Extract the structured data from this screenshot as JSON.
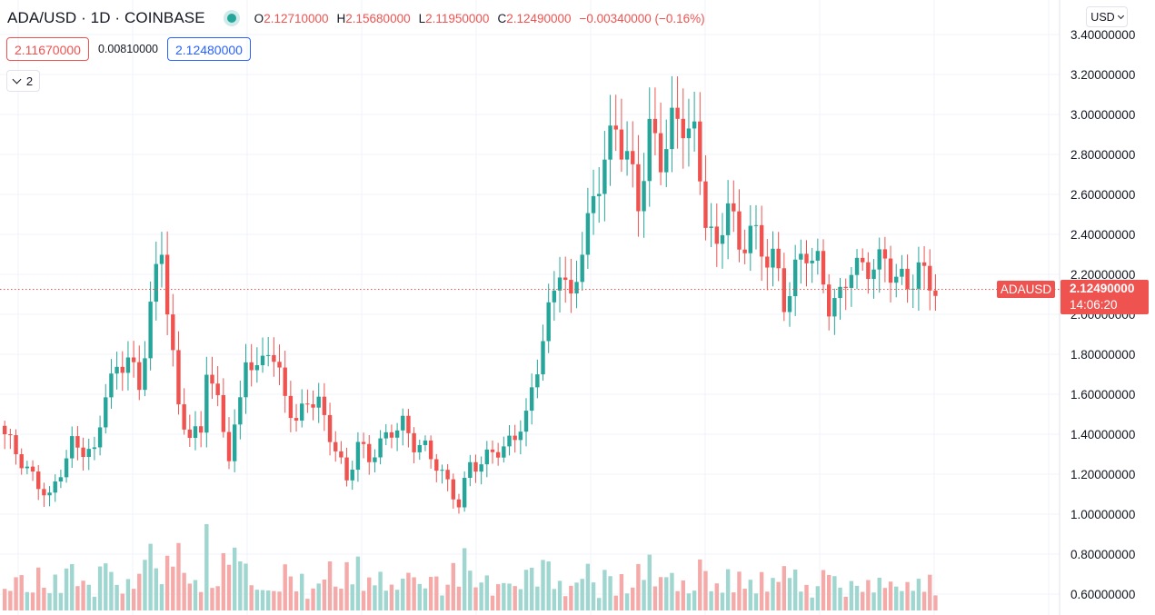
{
  "header": {
    "symbol": "ADA/USD · 1D · COINBASE",
    "open_label": "O",
    "open": "2.12710000",
    "high_label": "H",
    "high": "2.15680000",
    "low_label": "L",
    "low": "2.11950000",
    "close_label": "C",
    "close": "2.12490000",
    "change": "−0.00340000 (−0.16%)",
    "status_icon": "live-dot-icon"
  },
  "quote": {
    "bid": "2.11670000",
    "spread": "0.00810000",
    "ask": "2.12480000"
  },
  "indicators": {
    "count": "2",
    "icon": "chevron-down-icon"
  },
  "currency": {
    "label": "USD",
    "icon": "chevron-down-icon"
  },
  "last_price": {
    "symbol": "ADAUSD",
    "price": "2.12490000",
    "countdown": "14:06:20"
  },
  "colors": {
    "up": "#26a69a",
    "down": "#ef5350",
    "up_volume": "#9fd6d0",
    "down_volume": "#f4aaa8",
    "grid": "#f0f3fa"
  },
  "chart_data": {
    "type": "candlestick",
    "price_scale": {
      "ticks": [
        "3.40000000",
        "3.20000000",
        "3.00000000",
        "2.80000000",
        "2.60000000",
        "2.40000000",
        "2.20000000",
        "2.00000000",
        "1.80000000",
        "1.60000000",
        "1.40000000",
        "1.20000000",
        "1.00000000",
        "0.80000000",
        "0.60000000"
      ],
      "range": [
        0.55,
        3.45
      ]
    },
    "last_price": 2.1249,
    "key_closes": [
      {
        "i": 0,
        "c": 1.4
      },
      {
        "i": 4,
        "c": 1.22
      },
      {
        "i": 8,
        "c": 1.08
      },
      {
        "i": 10,
        "c": 1.22
      },
      {
        "i": 12,
        "c": 1.35
      },
      {
        "i": 16,
        "c": 1.3
      },
      {
        "i": 18,
        "c": 1.62
      },
      {
        "i": 22,
        "c": 1.8
      },
      {
        "i": 24,
        "c": 1.62
      },
      {
        "i": 26,
        "c": 2.05
      },
      {
        "i": 28,
        "c": 2.33
      },
      {
        "i": 29,
        "c": 2.05
      },
      {
        "i": 31,
        "c": 1.52
      },
      {
        "i": 33,
        "c": 1.4
      },
      {
        "i": 35,
        "c": 1.4
      },
      {
        "i": 36,
        "c": 1.75
      },
      {
        "i": 38,
        "c": 1.55
      },
      {
        "i": 40,
        "c": 1.3
      },
      {
        "i": 42,
        "c": 1.55
      },
      {
        "i": 43,
        "c": 1.8
      },
      {
        "i": 45,
        "c": 1.7
      },
      {
        "i": 47,
        "c": 1.85
      },
      {
        "i": 50,
        "c": 1.6
      },
      {
        "i": 52,
        "c": 1.45
      },
      {
        "i": 54,
        "c": 1.58
      },
      {
        "i": 56,
        "c": 1.55
      },
      {
        "i": 58,
        "c": 1.4
      },
      {
        "i": 61,
        "c": 1.17
      },
      {
        "i": 63,
        "c": 1.35
      },
      {
        "i": 65,
        "c": 1.28
      },
      {
        "i": 67,
        "c": 1.35
      },
      {
        "i": 69,
        "c": 1.42
      },
      {
        "i": 71,
        "c": 1.45
      },
      {
        "i": 73,
        "c": 1.35
      },
      {
        "i": 75,
        "c": 1.33
      },
      {
        "i": 77,
        "c": 1.25
      },
      {
        "i": 79,
        "c": 1.15
      },
      {
        "i": 81,
        "c": 1.05
      },
      {
        "i": 83,
        "c": 1.25
      },
      {
        "i": 85,
        "c": 1.25
      },
      {
        "i": 87,
        "c": 1.32
      },
      {
        "i": 89,
        "c": 1.32
      },
      {
        "i": 91,
        "c": 1.4
      },
      {
        "i": 93,
        "c": 1.48
      },
      {
        "i": 95,
        "c": 1.75
      },
      {
        "i": 97,
        "c": 2.0
      },
      {
        "i": 99,
        "c": 2.25
      },
      {
        "i": 101,
        "c": 2.05
      },
      {
        "i": 103,
        "c": 2.35
      },
      {
        "i": 105,
        "c": 2.55
      },
      {
        "i": 107,
        "c": 2.8
      },
      {
        "i": 109,
        "c": 2.92
      },
      {
        "i": 111,
        "c": 2.8
      },
      {
        "i": 113,
        "c": 2.55
      },
      {
        "i": 115,
        "c": 2.92
      },
      {
        "i": 117,
        "c": 2.78
      },
      {
        "i": 119,
        "c": 2.95
      },
      {
        "i": 121,
        "c": 2.97
      },
      {
        "i": 123,
        "c": 2.88
      },
      {
        "i": 125,
        "c": 2.5
      },
      {
        "i": 127,
        "c": 2.3
      },
      {
        "i": 129,
        "c": 2.6
      },
      {
        "i": 131,
        "c": 2.3
      },
      {
        "i": 133,
        "c": 2.45
      },
      {
        "i": 135,
        "c": 2.3
      },
      {
        "i": 137,
        "c": 2.3
      },
      {
        "i": 139,
        "c": 2.05
      },
      {
        "i": 141,
        "c": 2.22
      },
      {
        "i": 143,
        "c": 2.32
      },
      {
        "i": 145,
        "c": 2.25
      },
      {
        "i": 147,
        "c": 2.05
      },
      {
        "i": 149,
        "c": 2.08
      },
      {
        "i": 151,
        "c": 2.25
      },
      {
        "i": 153,
        "c": 2.22
      },
      {
        "i": 155,
        "c": 2.25
      },
      {
        "i": 157,
        "c": 2.27
      },
      {
        "i": 159,
        "c": 2.18
      },
      {
        "i": 161,
        "c": 2.15
      },
      {
        "i": 163,
        "c": 2.22
      },
      {
        "i": 165,
        "c": 2.17
      },
      {
        "i": 166,
        "c": 2.125
      }
    ],
    "bar_count": 167
  }
}
